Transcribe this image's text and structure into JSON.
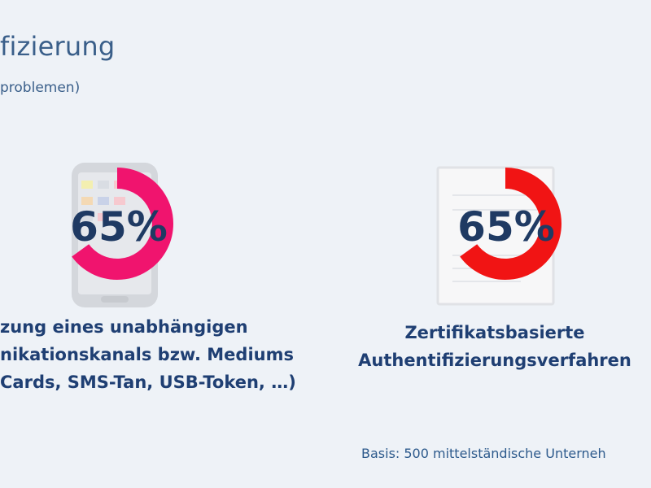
{
  "header": {
    "title": "fizierung",
    "subtitle": "problemen)"
  },
  "chart_data": {
    "type": "pie",
    "title": "fizierung",
    "items": [
      {
        "value": 65,
        "label": "65%",
        "color": "#f0146e",
        "icon": "smartphone-icon",
        "category_lines": [
          "zung eines unabhängigen",
          "nikationskanals bzw. Mediums",
          "Cards, SMS-Tan, USB-Token, …)"
        ]
      },
      {
        "value": 65,
        "label": "65%",
        "color": "#f11414",
        "icon": "certificate-icon",
        "category_lines": [
          "Zertifikatsbasierte",
          "Authentifizierungsverfahren"
        ]
      }
    ]
  },
  "footer": {
    "basis": "Basis: 500 mittelständische Unterneh"
  }
}
